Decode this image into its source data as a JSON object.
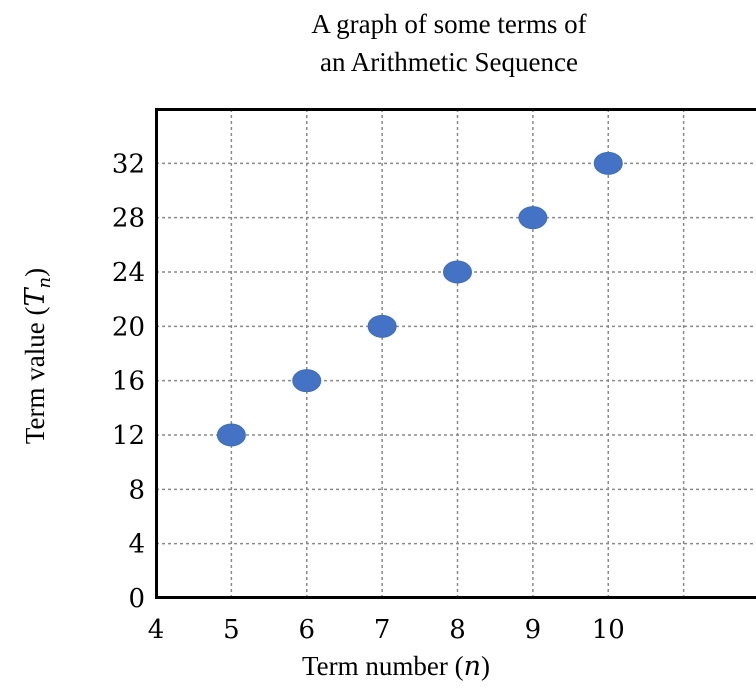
{
  "chart_data": {
    "type": "scatter",
    "title": "A graph of some terms of an Arithmetic Sequence",
    "title_lines": [
      "A graph of some terms of",
      "an Arithmetic Sequence"
    ],
    "xlabel_text": "Term number (",
    "xlabel_var": "n",
    "ylabel_text": "Term value (",
    "ylabel_var": "T",
    "ylabel_sub": "n",
    "closing_paren": ")",
    "xlim": [
      4,
      12
    ],
    "ylim": [
      0,
      36
    ],
    "xticks": [
      4,
      5,
      6,
      7,
      8,
      9,
      10
    ],
    "xtick_labels": [
      "4",
      "5",
      "6",
      "7",
      "8",
      "9",
      "10"
    ],
    "yticks": [
      0,
      4,
      8,
      12,
      16,
      20,
      24,
      28,
      32
    ],
    "ytick_labels": [
      "0",
      "4",
      "8",
      "12",
      "16",
      "20",
      "24",
      "28",
      "32"
    ],
    "x_gridlines": [
      5,
      6,
      7,
      8,
      9,
      10,
      11
    ],
    "y_gridlines": [
      4,
      8,
      12,
      16,
      20,
      24,
      28,
      32
    ],
    "grid": true,
    "grid_style": "dashed",
    "point_color": "#4472c4",
    "series": [
      {
        "x": [
          5,
          6,
          7,
          8,
          9,
          10
        ],
        "y": [
          12,
          16,
          20,
          24,
          28,
          32
        ]
      }
    ]
  }
}
